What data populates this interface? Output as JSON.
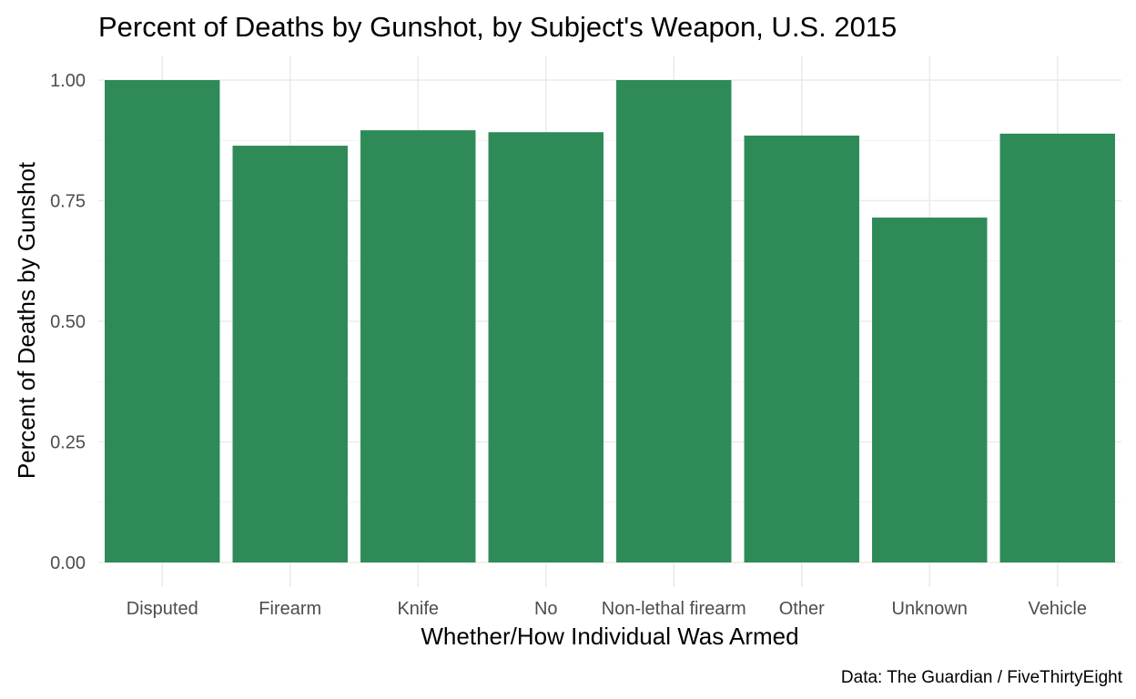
{
  "chart_data": {
    "type": "bar",
    "title": "Percent of Deaths by Gunshot, by Subject's Weapon, U.S. 2015",
    "xlabel": "Whether/How Individual Was Armed",
    "ylabel": "Percent of Deaths by Gunshot",
    "caption": "Data: The Guardian / FiveThirtyEight",
    "categories": [
      "Disputed",
      "Firearm",
      "Knife",
      "No",
      "Non-lethal firearm",
      "Other",
      "Unknown",
      "Vehicle"
    ],
    "values": [
      1.0,
      0.864,
      0.896,
      0.892,
      1.0,
      0.885,
      0.715,
      0.889
    ],
    "ylim": [
      0,
      1.05
    ],
    "yticks": [
      0,
      0.25,
      0.5,
      0.75,
      1.0
    ],
    "ytick_labels": [
      "0.00",
      "0.25",
      "0.50",
      "0.75",
      "1.00"
    ],
    "bar_color": "#2e8b57",
    "grid": true,
    "legend": "none"
  }
}
